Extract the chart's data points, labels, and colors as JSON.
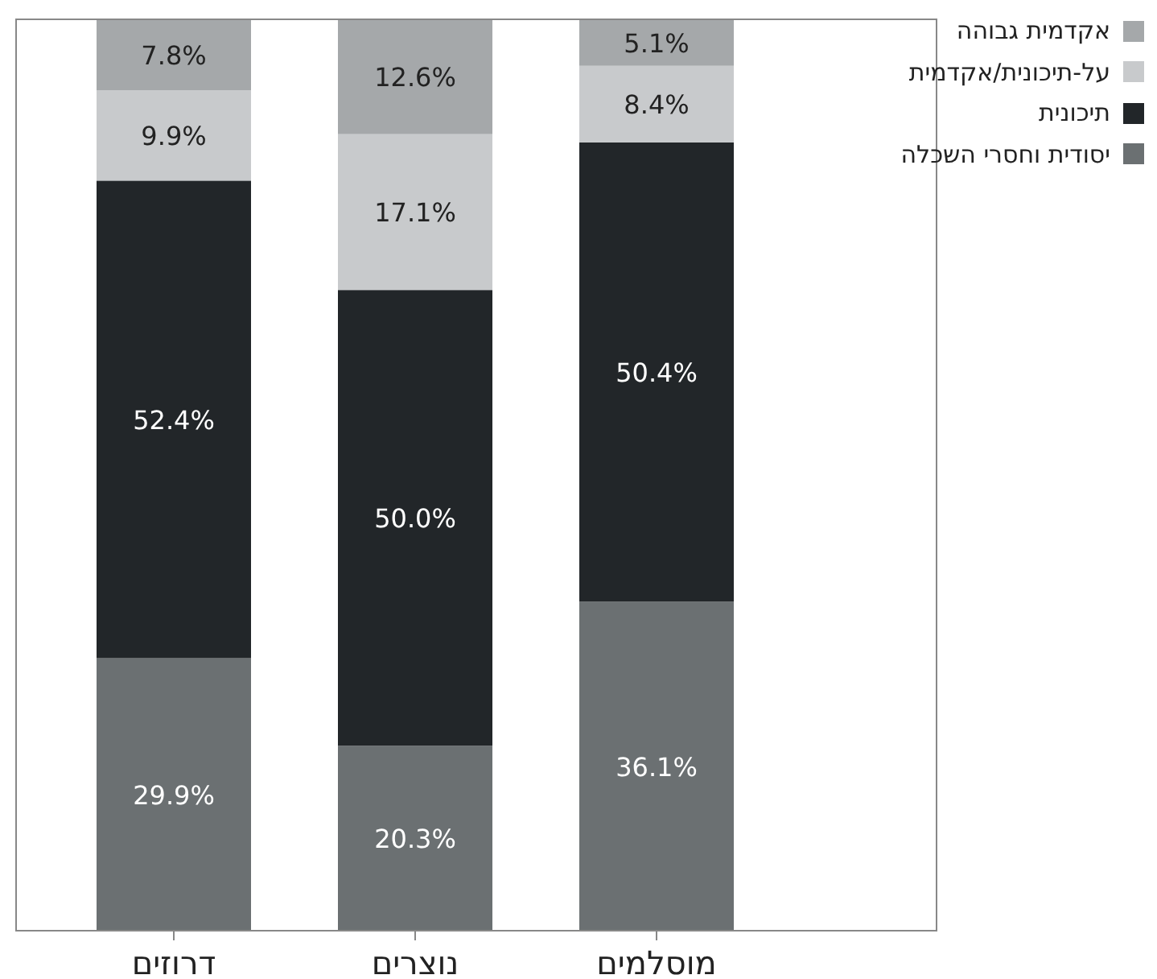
{
  "chart_data": {
    "type": "bar",
    "stacked": true,
    "categories": [
      "דרוזים",
      "נוצרים",
      "מוסלמים"
    ],
    "series": [
      {
        "name": "יסודית וחסרי השכלה",
        "color": "#6b7072",
        "values": [
          29.9,
          20.3,
          36.1
        ],
        "value_labels": [
          "29.9%",
          "20.3%",
          "36.1%"
        ]
      },
      {
        "name": "תיכונית",
        "color": "#222629",
        "values": [
          52.4,
          50.0,
          50.4
        ],
        "value_labels": [
          "52.4%",
          "50.0%",
          "50.4%"
        ]
      },
      {
        "name": "על-תיכונית/אקדמית",
        "color": "#c8cacc",
        "values": [
          9.9,
          17.1,
          8.4
        ],
        "value_labels": [
          "9.9%",
          "17.1%",
          "8.4%"
        ]
      },
      {
        "name": "אקדמית גבוהה",
        "color": "#a5a8aa",
        "values": [
          7.8,
          12.6,
          5.1
        ],
        "value_labels": [
          "7.8%",
          "12.6%",
          "5.1%"
        ]
      }
    ],
    "tick_labels": "x",
    "legend": "top right"
  }
}
